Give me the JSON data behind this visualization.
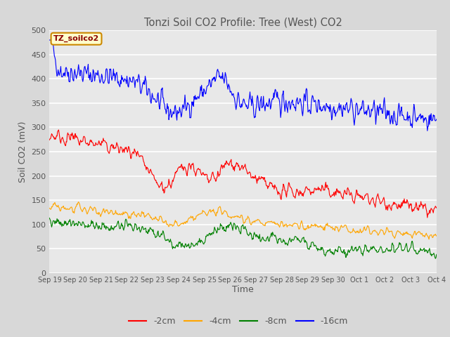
{
  "title": "Tonzi Soil CO2 Profile: Tree (West) CO2",
  "ylabel": "Soil CO2 (mV)",
  "xlabel": "Time",
  "legend_label": "TZ_soilco2",
  "ylim": [
    0,
    500
  ],
  "series_labels": [
    "-2cm",
    "-4cm",
    "-8cm",
    "-16cm"
  ],
  "series_colors": [
    "red",
    "orange",
    "green",
    "blue"
  ],
  "fig_facecolor": "#d8d8d8",
  "plot_bg_color": "#e8e8e8",
  "grid_color": "white",
  "title_color": "#555555",
  "annotation_box_facecolor": "#ffffcc",
  "annotation_box_edgecolor": "#cc8800",
  "annotation_text_color": "#8b0000",
  "yticks": [
    0,
    50,
    100,
    150,
    200,
    250,
    300,
    350,
    400,
    450,
    500
  ]
}
